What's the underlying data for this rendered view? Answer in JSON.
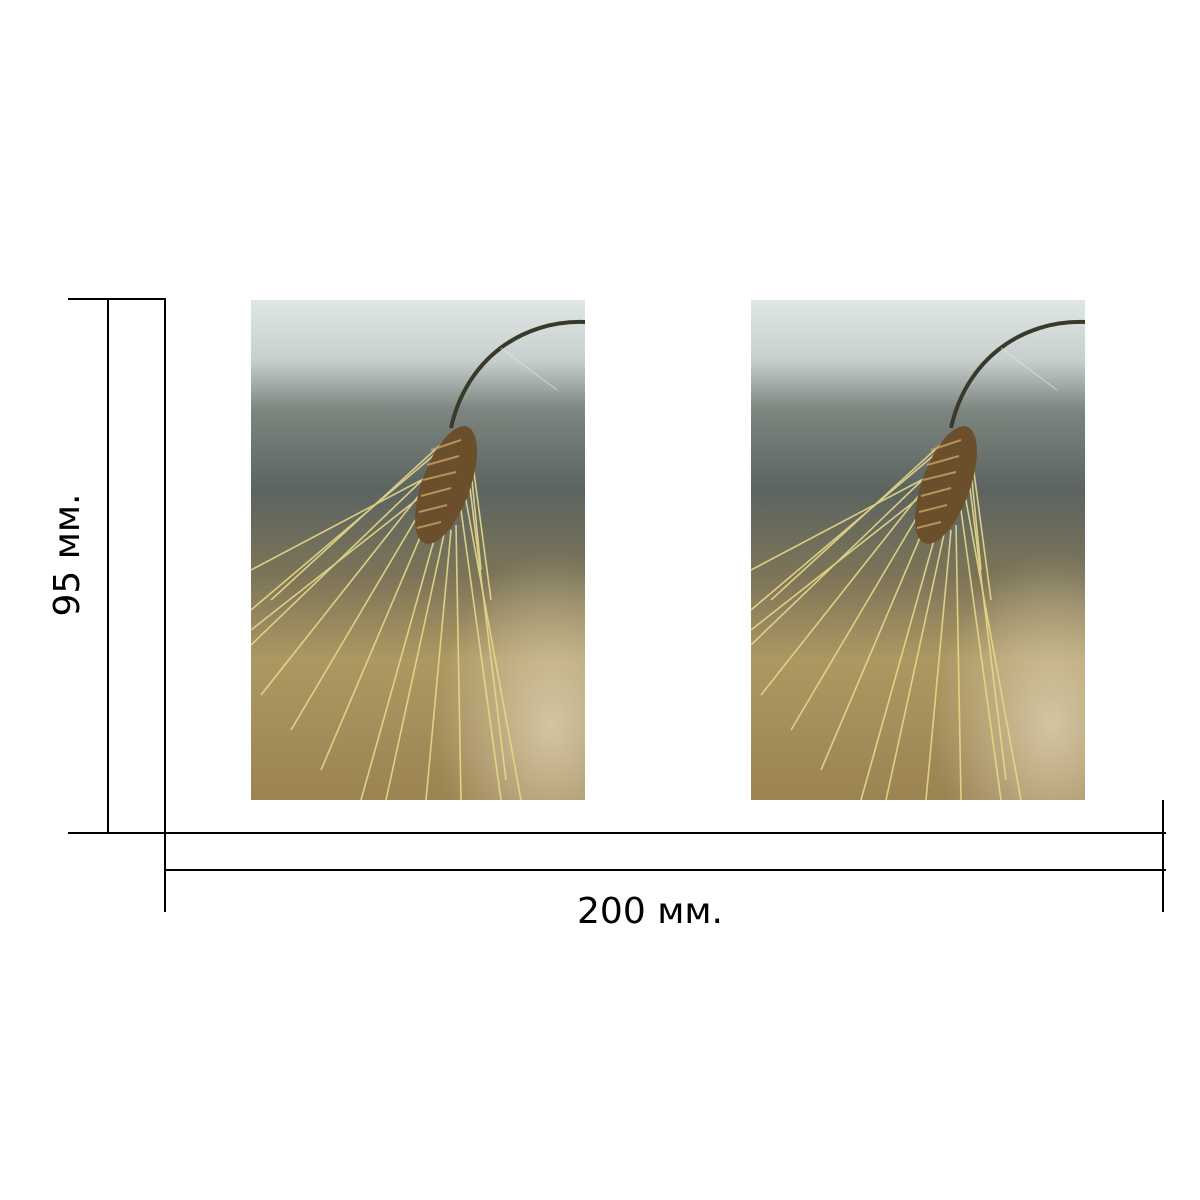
{
  "dimensions": {
    "width_label": "200 мм.",
    "height_label": "95 мм."
  },
  "panels": [
    {
      "content": "barley-ear-photo"
    },
    {
      "content": "barley-ear-photo"
    }
  ],
  "colors": {
    "background": "#ffffff",
    "lines": "#000000",
    "sky": "#dfe6e6",
    "haze": "#5c6460",
    "field": "#b39b66",
    "awns": "#e8d98a",
    "spike": "#6b4e2a"
  }
}
